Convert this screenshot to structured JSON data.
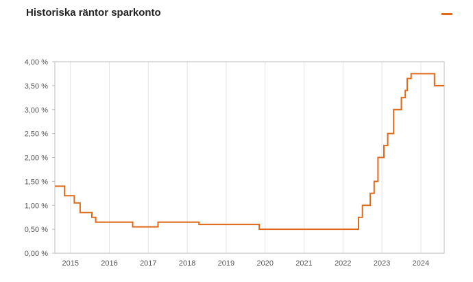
{
  "chart_data": {
    "type": "line",
    "step": true,
    "title": "Historiska räntor sparkonto",
    "xlabel": "",
    "ylabel": "",
    "xlim": [
      2014.6,
      2024.6
    ],
    "ylim": [
      0,
      4
    ],
    "grid": "vertical",
    "legend": "top-right",
    "line_color": "#e06a1b",
    "x_ticks": [
      {
        "value": 2015,
        "label": "2015"
      },
      {
        "value": 2016,
        "label": "2016"
      },
      {
        "value": 2017,
        "label": "2017"
      },
      {
        "value": 2018,
        "label": "2018"
      },
      {
        "value": 2019,
        "label": "2019"
      },
      {
        "value": 2020,
        "label": "2020"
      },
      {
        "value": 2021,
        "label": "2021"
      },
      {
        "value": 2022,
        "label": "2022"
      },
      {
        "value": 2023,
        "label": "2023"
      },
      {
        "value": 2024,
        "label": "2024"
      }
    ],
    "y_ticks": [
      {
        "value": 0,
        "label": "0,00 %"
      },
      {
        "value": 0.5,
        "label": "0,50 %"
      },
      {
        "value": 1.0,
        "label": "1,00 %"
      },
      {
        "value": 1.5,
        "label": "1,50 %"
      },
      {
        "value": 2.0,
        "label": "2,00 %"
      },
      {
        "value": 2.5,
        "label": "2,50 %"
      },
      {
        "value": 3.0,
        "label": "3,00 %"
      },
      {
        "value": 3.5,
        "label": "3,50 %"
      },
      {
        "value": 4.0,
        "label": "4,00 %"
      }
    ],
    "series": [
      {
        "name": "",
        "points": [
          [
            2014.6,
            1.4
          ],
          [
            2014.85,
            1.2
          ],
          [
            2015.1,
            1.05
          ],
          [
            2015.25,
            0.85
          ],
          [
            2015.55,
            0.75
          ],
          [
            2015.65,
            0.65
          ],
          [
            2016.6,
            0.55
          ],
          [
            2017.25,
            0.65
          ],
          [
            2018.3,
            0.6
          ],
          [
            2019.85,
            0.5
          ],
          [
            2022.4,
            0.75
          ],
          [
            2022.5,
            1.0
          ],
          [
            2022.7,
            1.25
          ],
          [
            2022.8,
            1.5
          ],
          [
            2022.9,
            2.0
          ],
          [
            2023.05,
            2.25
          ],
          [
            2023.15,
            2.5
          ],
          [
            2023.3,
            3.0
          ],
          [
            2023.5,
            3.25
          ],
          [
            2023.6,
            3.4
          ],
          [
            2023.65,
            3.65
          ],
          [
            2023.75,
            3.75
          ],
          [
            2024.35,
            3.5
          ],
          [
            2024.6,
            3.5
          ]
        ]
      }
    ]
  }
}
